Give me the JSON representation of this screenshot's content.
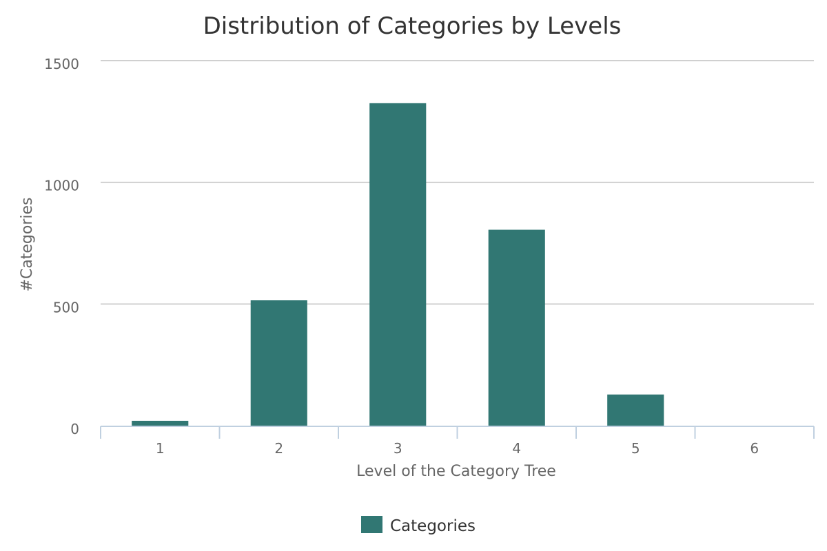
{
  "chart_data": {
    "type": "bar",
    "title": "Distribution of Categories by Levels",
    "xlabel": "Level of the Category Tree",
    "ylabel": "#Categories",
    "categories": [
      "1",
      "2",
      "3",
      "4",
      "5",
      "6"
    ],
    "series": [
      {
        "name": "Categories",
        "values": [
          20,
          515,
          1325,
          805,
          128,
          0
        ],
        "color": "#317773"
      }
    ],
    "ylim": [
      0,
      1500
    ],
    "yticks": [
      "0",
      "500",
      "1000",
      "1500"
    ],
    "grid": true,
    "legend_position": "bottom-center"
  }
}
